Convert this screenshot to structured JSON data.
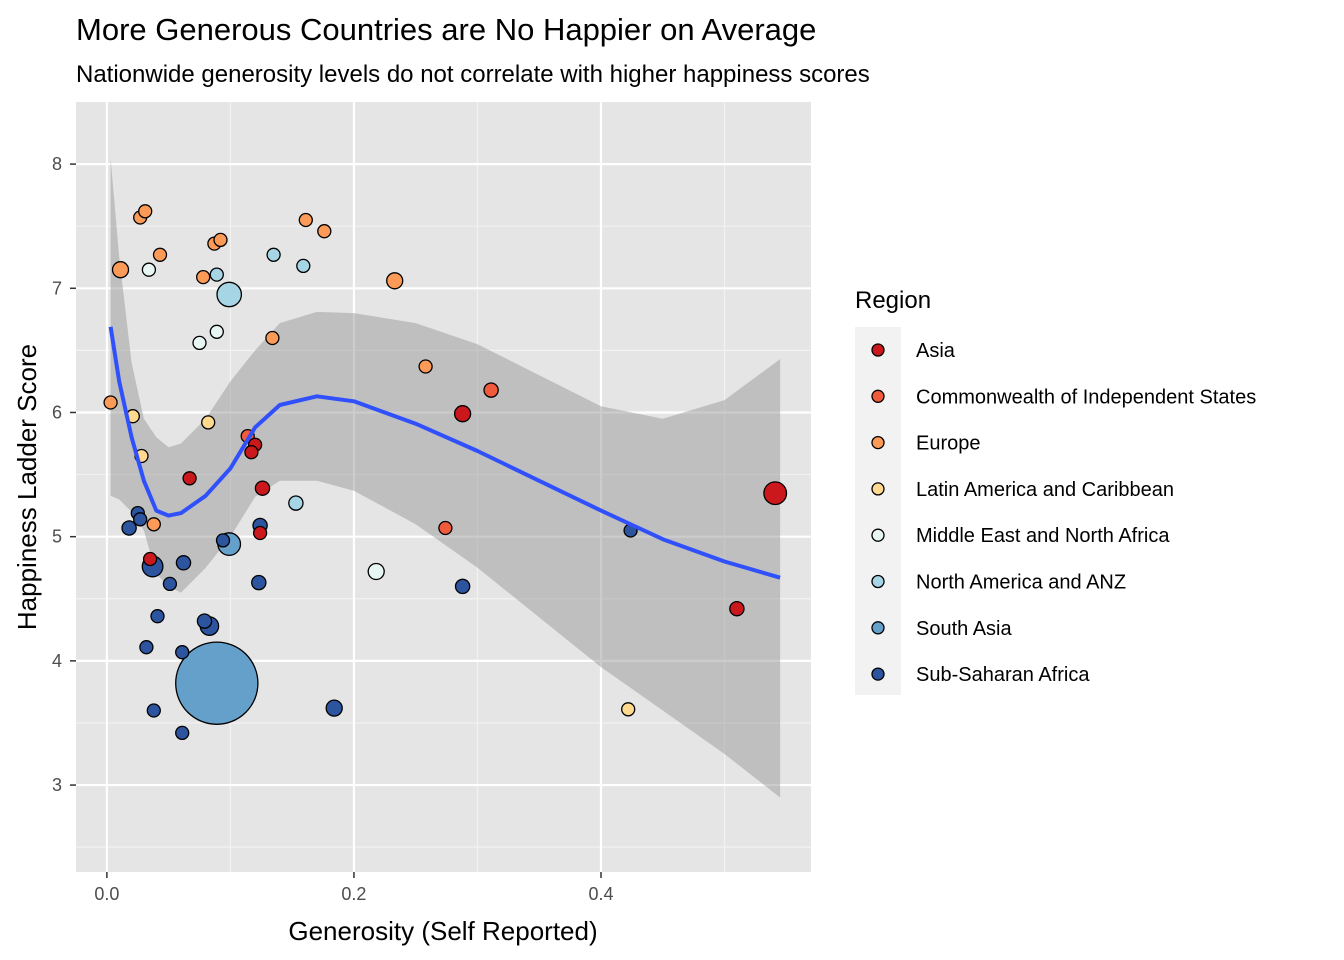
{
  "chart_data": {
    "type": "scatter",
    "title": "More Generous Countries are No Happier on Average",
    "subtitle": "Nationwide generosity levels do not correlate with higher happiness scores",
    "xlabel": "Generosity (Self Reported)",
    "ylabel": "Happiness Ladder Score",
    "xlim": [
      -0.025,
      0.57
    ],
    "ylim": [
      2.3,
      8.5
    ],
    "x_ticks": [
      0.0,
      0.2,
      0.4
    ],
    "x_tick_labels": [
      "0.0",
      "0.2",
      "0.4"
    ],
    "y_ticks": [
      3,
      4,
      5,
      6,
      7,
      8
    ],
    "y_tick_labels": [
      "3",
      "4",
      "5",
      "6",
      "7",
      "8"
    ],
    "grid": true,
    "legend": {
      "title": "Region",
      "placement": "right",
      "entries": [
        {
          "label": "Asia",
          "color": "#cb181d"
        },
        {
          "label": "Commonwealth of Independent States",
          "color": "#ef5b3c"
        },
        {
          "label": "Europe",
          "color": "#fc9b57"
        },
        {
          "label": "Latin America and Caribbean",
          "color": "#fed98e"
        },
        {
          "label": "Middle East and North Africa",
          "color": "#e7f5f3"
        },
        {
          "label": "North America and ANZ",
          "color": "#a6d6e6"
        },
        {
          "label": "South Asia",
          "color": "#65a0ca"
        },
        {
          "label": "Sub-Saharan Africa",
          "color": "#2c549f"
        }
      ]
    },
    "smooth": {
      "color": "#3050fc",
      "band_color": "#999999",
      "x": [
        0.003,
        0.01,
        0.02,
        0.03,
        0.04,
        0.05,
        0.06,
        0.08,
        0.1,
        0.12,
        0.14,
        0.17,
        0.2,
        0.25,
        0.3,
        0.35,
        0.4,
        0.45,
        0.5,
        0.545
      ],
      "y": [
        6.69,
        6.25,
        5.8,
        5.45,
        5.21,
        5.17,
        5.19,
        5.33,
        5.55,
        5.88,
        6.06,
        6.13,
        6.09,
        5.91,
        5.69,
        5.45,
        5.21,
        4.98,
        4.8,
        4.67
      ],
      "lower": [
        5.33,
        5.3,
        5.2,
        5.05,
        4.7,
        4.6,
        4.55,
        4.75,
        5.0,
        5.32,
        5.45,
        5.45,
        5.37,
        5.1,
        4.75,
        4.35,
        3.95,
        3.6,
        3.25,
        2.9
      ],
      "upper": [
        8.05,
        7.25,
        6.4,
        5.95,
        5.8,
        5.72,
        5.75,
        5.95,
        6.25,
        6.5,
        6.72,
        6.81,
        6.8,
        6.72,
        6.55,
        6.3,
        6.05,
        5.95,
        6.1,
        6.43
      ]
    },
    "points": [
      {
        "x": 0.027,
        "y": 7.57,
        "region": "Europe",
        "size": 1
      },
      {
        "x": 0.031,
        "y": 7.62,
        "region": "Europe",
        "size": 1
      },
      {
        "x": 0.011,
        "y": 7.15,
        "region": "Europe",
        "size": 1.5
      },
      {
        "x": 0.043,
        "y": 7.27,
        "region": "Europe",
        "size": 1
      },
      {
        "x": 0.034,
        "y": 7.15,
        "region": "Middle East and North Africa",
        "size": 1
      },
      {
        "x": 0.087,
        "y": 7.36,
        "region": "Europe",
        "size": 1
      },
      {
        "x": 0.092,
        "y": 7.39,
        "region": "Europe",
        "size": 1
      },
      {
        "x": 0.078,
        "y": 7.09,
        "region": "Europe",
        "size": 1
      },
      {
        "x": 0.089,
        "y": 7.11,
        "region": "North America and ANZ",
        "size": 1
      },
      {
        "x": 0.099,
        "y": 6.95,
        "region": "North America and ANZ",
        "size": 3.5
      },
      {
        "x": 0.135,
        "y": 7.27,
        "region": "North America and ANZ",
        "size": 1
      },
      {
        "x": 0.161,
        "y": 7.55,
        "region": "Europe",
        "size": 1
      },
      {
        "x": 0.176,
        "y": 7.46,
        "region": "Europe",
        "size": 1
      },
      {
        "x": 0.159,
        "y": 7.18,
        "region": "North America and ANZ",
        "size": 1
      },
      {
        "x": 0.233,
        "y": 7.06,
        "region": "Europe",
        "size": 1.5
      },
      {
        "x": 0.075,
        "y": 6.56,
        "region": "Middle East and North Africa",
        "size": 1
      },
      {
        "x": 0.089,
        "y": 6.65,
        "region": "Middle East and North Africa",
        "size": 1
      },
      {
        "x": 0.134,
        "y": 6.6,
        "region": "Europe",
        "size": 1
      },
      {
        "x": 0.258,
        "y": 6.37,
        "region": "Europe",
        "size": 1
      },
      {
        "x": 0.311,
        "y": 6.18,
        "region": "Commonwealth of Independent States",
        "size": 1.2
      },
      {
        "x": 0.288,
        "y": 5.99,
        "region": "Asia",
        "size": 1.5
      },
      {
        "x": 0.003,
        "y": 6.08,
        "region": "Europe",
        "size": 1
      },
      {
        "x": 0.021,
        "y": 5.97,
        "region": "Latin America and Caribbean",
        "size": 1
      },
      {
        "x": 0.082,
        "y": 5.92,
        "region": "Latin America and Caribbean",
        "size": 1
      },
      {
        "x": 0.028,
        "y": 5.65,
        "region": "Latin America and Caribbean",
        "size": 1
      },
      {
        "x": 0.114,
        "y": 5.81,
        "region": "Commonwealth of Independent States",
        "size": 1
      },
      {
        "x": 0.12,
        "y": 5.74,
        "region": "Asia",
        "size": 1
      },
      {
        "x": 0.117,
        "y": 5.68,
        "region": "Asia",
        "size": 1
      },
      {
        "x": 0.067,
        "y": 5.47,
        "region": "Asia",
        "size": 1
      },
      {
        "x": 0.126,
        "y": 5.39,
        "region": "Asia",
        "size": 1.2
      },
      {
        "x": 0.153,
        "y": 5.27,
        "region": "North America and ANZ",
        "size": 1.2
      },
      {
        "x": 0.025,
        "y": 5.19,
        "region": "Sub-Saharan Africa",
        "size": 1
      },
      {
        "x": 0.027,
        "y": 5.14,
        "region": "Sub-Saharan Africa",
        "size": 1
      },
      {
        "x": 0.038,
        "y": 5.1,
        "region": "Europe",
        "size": 1
      },
      {
        "x": 0.018,
        "y": 5.07,
        "region": "Sub-Saharan Africa",
        "size": 1.2
      },
      {
        "x": 0.124,
        "y": 5.09,
        "region": "Sub-Saharan Africa",
        "size": 1.2
      },
      {
        "x": 0.124,
        "y": 5.03,
        "region": "Asia",
        "size": 1
      },
      {
        "x": 0.274,
        "y": 5.07,
        "region": "Commonwealth of Independent States",
        "size": 1
      },
      {
        "x": 0.424,
        "y": 5.05,
        "region": "Sub-Saharan Africa",
        "size": 1
      },
      {
        "x": 0.541,
        "y": 5.35,
        "region": "Asia",
        "size": 3
      },
      {
        "x": 0.094,
        "y": 4.97,
        "region": "Sub-Saharan Africa",
        "size": 1
      },
      {
        "x": 0.099,
        "y": 4.94,
        "region": "South Asia",
        "size": 3
      },
      {
        "x": 0.035,
        "y": 4.82,
        "region": "Asia",
        "size": 1
      },
      {
        "x": 0.037,
        "y": 4.76,
        "region": "Sub-Saharan Africa",
        "size": 2.5
      },
      {
        "x": 0.062,
        "y": 4.79,
        "region": "Sub-Saharan Africa",
        "size": 1.2
      },
      {
        "x": 0.218,
        "y": 4.72,
        "region": "Middle East and North Africa",
        "size": 1.5
      },
      {
        "x": 0.051,
        "y": 4.62,
        "region": "Sub-Saharan Africa",
        "size": 1
      },
      {
        "x": 0.123,
        "y": 4.63,
        "region": "Sub-Saharan Africa",
        "size": 1.2
      },
      {
        "x": 0.288,
        "y": 4.6,
        "region": "Sub-Saharan Africa",
        "size": 1.2
      },
      {
        "x": 0.51,
        "y": 4.42,
        "region": "Asia",
        "size": 1.2
      },
      {
        "x": 0.041,
        "y": 4.36,
        "region": "Sub-Saharan Africa",
        "size": 1
      },
      {
        "x": 0.079,
        "y": 4.32,
        "region": "Sub-Saharan Africa",
        "size": 1.2
      },
      {
        "x": 0.083,
        "y": 4.28,
        "region": "Sub-Saharan Africa",
        "size": 2
      },
      {
        "x": 0.032,
        "y": 4.11,
        "region": "Sub-Saharan Africa",
        "size": 1
      },
      {
        "x": 0.061,
        "y": 4.07,
        "region": "Sub-Saharan Africa",
        "size": 1
      },
      {
        "x": 0.089,
        "y": 3.82,
        "region": "South Asia",
        "size": 40
      },
      {
        "x": 0.038,
        "y": 3.6,
        "region": "Sub-Saharan Africa",
        "size": 1
      },
      {
        "x": 0.184,
        "y": 3.62,
        "region": "Sub-Saharan Africa",
        "size": 1.5
      },
      {
        "x": 0.422,
        "y": 3.61,
        "region": "Latin America and Caribbean",
        "size": 1
      },
      {
        "x": 0.061,
        "y": 3.42,
        "region": "Sub-Saharan Africa",
        "size": 1
      }
    ]
  }
}
